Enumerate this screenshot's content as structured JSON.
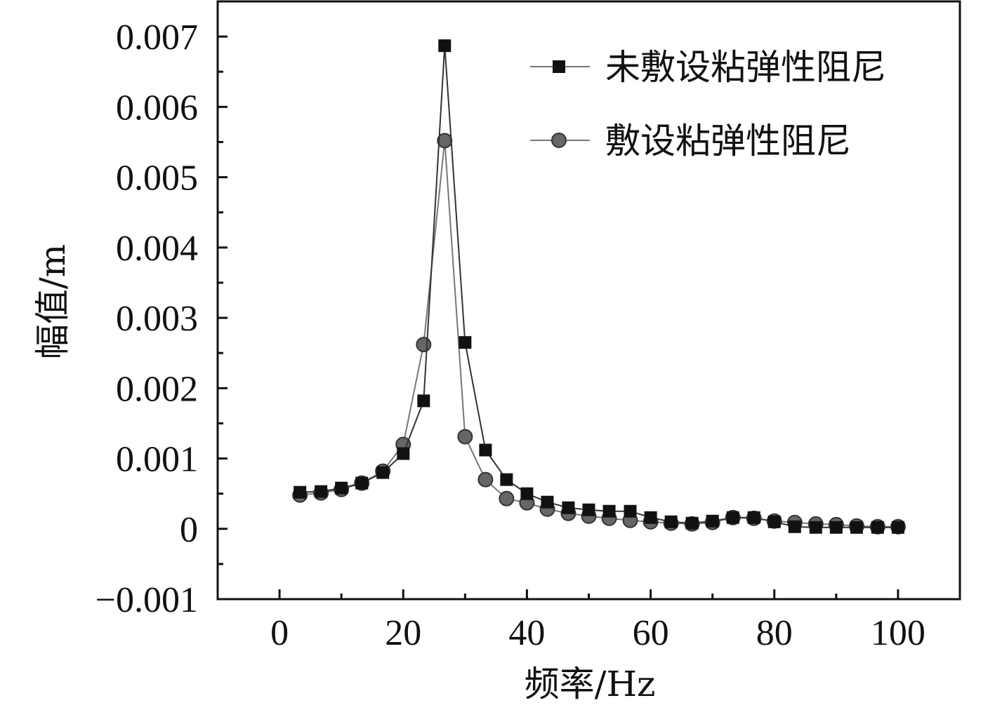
{
  "chart_data": {
    "type": "line",
    "title": "",
    "xlabel": "频率/Hz",
    "ylabel": "幅值/m",
    "xlim": [
      -10,
      110
    ],
    "ylim": [
      -0.001,
      0.0075
    ],
    "xticks": [
      0,
      20,
      40,
      60,
      80,
      100
    ],
    "xtick_labels": [
      "0",
      "20",
      "40",
      "60",
      "80",
      "100"
    ],
    "yticks": [
      -0.001,
      0,
      0.001,
      0.002,
      0.003,
      0.004,
      0.005,
      0.006,
      0.007
    ],
    "ytick_labels": [
      "−0.001",
      "0",
      "0.001",
      "0.002",
      "0.003",
      "0.004",
      "0.005",
      "0.006",
      "0.007"
    ],
    "grid": false,
    "legend_position": "top-right",
    "x": [
      3.3,
      6.7,
      10,
      13.3,
      16.7,
      20,
      23.3,
      26.7,
      30,
      33.3,
      36.7,
      40,
      43.3,
      46.7,
      50,
      53.3,
      56.7,
      60,
      63.3,
      66.7,
      70,
      73.3,
      76.7,
      80,
      83.3,
      86.7,
      90,
      93.3,
      96.7,
      100
    ],
    "series": [
      {
        "name": "未敷设粘弹性阻尼",
        "marker": "square",
        "color": "#111111",
        "values": [
          0.00052,
          0.00053,
          0.00058,
          0.00065,
          0.0008,
          0.00107,
          0.00182,
          0.00687,
          0.00265,
          0.00112,
          0.0007,
          0.0005,
          0.00038,
          0.0003,
          0.00027,
          0.00025,
          0.00025,
          0.00016,
          0.0001,
          8e-05,
          0.00011,
          0.00016,
          0.00016,
          0.0001,
          3e-05,
          2e-05,
          2e-05,
          2e-05,
          2e-05,
          2e-05
        ]
      },
      {
        "name": "敷设粘弹性阻尼",
        "marker": "circle",
        "color": "#666666",
        "values": [
          0.00048,
          0.00051,
          0.00056,
          0.00065,
          0.00082,
          0.0012,
          0.00262,
          0.00552,
          0.00131,
          0.0007,
          0.00043,
          0.00037,
          0.00028,
          0.00022,
          0.00018,
          0.00015,
          0.00012,
          0.0001,
          8e-05,
          7e-05,
          9e-05,
          0.00016,
          0.00015,
          0.00011,
          9e-05,
          7e-05,
          6e-05,
          4e-05,
          3e-05,
          3e-05
        ]
      }
    ]
  }
}
